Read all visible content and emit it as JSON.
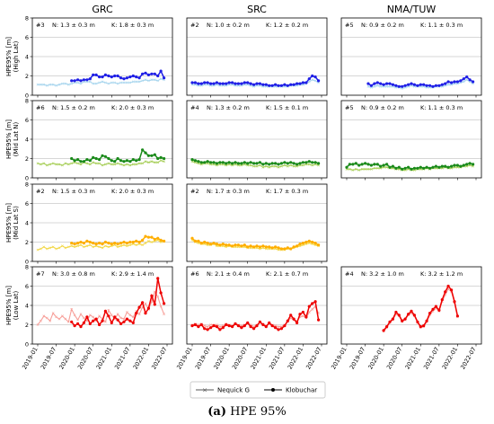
{
  "caption": {
    "label": "(a)",
    "text": "HPE 95%"
  },
  "columns": [
    "GRC",
    "SRC",
    "NMA/TUW"
  ],
  "rows": [
    {
      "ylabel": "HPE95% [m]",
      "group": "(High Lat)",
      "color_k": "#1f1fe6",
      "color_n": "#a9d6ee"
    },
    {
      "ylabel": "HPE95% [m]",
      "group": "(Mid Lat N)",
      "color_k": "#1a8a1a",
      "color_n": "#a8cf5a"
    },
    {
      "ylabel": "HPE95% [m]",
      "group": "(Mid Lat S)",
      "color_k": "#ffae00",
      "color_n": "#f2d84a"
    },
    {
      "ylabel": "HPE95% [m]",
      "group": "(Low Lat)",
      "color_k": "#ee0000",
      "color_n": "#f7a09a"
    }
  ],
  "x_ticks": [
    "2019-01",
    "2019-07",
    "2020-01",
    "2020-07",
    "2021-01",
    "2021-07",
    "2022-01",
    "2022-07"
  ],
  "y_ticks": [
    "0",
    "2",
    "4",
    "6",
    "8"
  ],
  "legend": [
    {
      "label": "Nequick G",
      "color": "#555555",
      "marker": "x"
    },
    {
      "label": "Klobuchar",
      "color": "#000000",
      "marker": "o"
    }
  ],
  "panels": [
    {
      "row": 0,
      "col": 0,
      "id": "#3",
      "n": "N: 1.3 ± 0.3 m",
      "k": "K: 1.8 ± 0.3 m"
    },
    {
      "row": 0,
      "col": 1,
      "id": "#2",
      "n": "N: 1.0 ± 0.2 m",
      "k": "K: 1.2 ± 0.2 m"
    },
    {
      "row": 0,
      "col": 2,
      "id": "#5",
      "n": "N: 0.9 ± 0.2 m",
      "k": "K: 1.1 ± 0.3 m"
    },
    {
      "row": 1,
      "col": 0,
      "id": "#6",
      "n": "N: 1.5 ± 0.2 m",
      "k": "K: 2.0 ± 0.3 m"
    },
    {
      "row": 1,
      "col": 1,
      "id": "#4",
      "n": "N: 1.3 ± 0.2 m",
      "k": "K: 1.5 ± 0.1 m"
    },
    {
      "row": 1,
      "col": 2,
      "id": "#5",
      "n": "N: 0.9 ± 0.2 m",
      "k": "K: 1.1 ± 0.3 m"
    },
    {
      "row": 2,
      "col": 0,
      "id": "#2",
      "n": "N: 1.5 ± 0.3 m",
      "k": "K: 2.0 ± 0.3 m"
    },
    {
      "row": 2,
      "col": 1,
      "id": "#2",
      "n": "N: 1.7 ± 0.3 m",
      "k": "K: 1.7 ± 0.3 m"
    },
    {
      "row": 3,
      "col": 0,
      "id": "#7",
      "n": "N: 3.0 ± 0.8 m",
      "k": "K: 2.9 ± 1.4 m"
    },
    {
      "row": 3,
      "col": 1,
      "id": "#6",
      "n": "N: 2.1 ± 0.4 m",
      "k": "K: 2.1 ± 0.7 m"
    },
    {
      "row": 3,
      "col": 2,
      "id": "#4",
      "n": "N: 3.2 ± 1.0 m",
      "k": "K: 3.2 ± 1.2 m"
    }
  ],
  "chart_data": {
    "type": "line",
    "x_unit": "month",
    "ylim": [
      0,
      8
    ],
    "xlim": [
      "2019-01",
      "2022-07"
    ],
    "grid": true,
    "legend_position": "bottom-center",
    "series": [
      {
        "panel": "GRC / High Lat",
        "name": "Klobuchar",
        "x_start": "2019-12",
        "values": [
          1.5,
          1.5,
          1.6,
          1.5,
          1.6,
          1.6,
          1.7,
          2.1,
          2.1,
          1.9,
          1.9,
          2.1,
          2.0,
          1.9,
          2.0,
          2.0,
          1.8,
          1.7,
          1.8,
          1.9,
          2.0,
          1.9,
          1.8,
          2.2,
          2.3,
          2.1,
          2.2,
          2.2,
          2.0,
          2.5,
          1.8
        ]
      },
      {
        "panel": "GRC / High Lat",
        "name": "Nequick G",
        "x_start": "2019-01",
        "values": [
          1.1,
          1.1,
          1.1,
          1.0,
          1.1,
          1.1,
          1.0,
          1.1,
          1.2,
          1.2,
          1.1,
          1.2,
          1.3,
          1.3,
          1.2,
          1.4,
          1.4,
          1.4,
          1.2,
          1.2,
          1.3,
          1.4,
          1.3,
          1.2,
          1.3,
          1.3,
          1.2,
          1.3,
          1.3,
          1.3,
          1.3,
          1.4,
          1.4,
          1.4,
          1.5,
          1.6,
          1.5,
          1.6,
          1.6,
          1.5,
          1.7,
          1.6
        ]
      },
      {
        "panel": "SRC / High Lat",
        "name": "Klobuchar",
        "x_start": "2019-01",
        "values": [
          1.3,
          1.3,
          1.2,
          1.2,
          1.3,
          1.3,
          1.2,
          1.2,
          1.3,
          1.2,
          1.2,
          1.2,
          1.3,
          1.3,
          1.2,
          1.2,
          1.2,
          1.3,
          1.3,
          1.2,
          1.1,
          1.2,
          1.2,
          1.1,
          1.1,
          1.0,
          1.0,
          1.1,
          1.0,
          1.0,
          1.1,
          1.0,
          1.1,
          1.1,
          1.2,
          1.2,
          1.3,
          1.3,
          1.7,
          2.0,
          1.9,
          1.5
        ]
      },
      {
        "panel": "SRC / High Lat",
        "name": "Nequick G",
        "x_start": "2019-01",
        "values": [
          1.1,
          1.1,
          1.0,
          1.0,
          1.1,
          1.1,
          1.0,
          1.0,
          1.1,
          1.0,
          1.0,
          1.0,
          1.1,
          1.1,
          1.0,
          1.0,
          1.0,
          1.1,
          1.1,
          1.0,
          0.9,
          1.0,
          1.0,
          0.9,
          0.9,
          0.9,
          0.9,
          0.9,
          0.9,
          0.9,
          0.9,
          0.9,
          1.0,
          1.0,
          1.0,
          1.1,
          1.1,
          1.2,
          1.4,
          1.6,
          1.5,
          1.3
        ]
      },
      {
        "panel": "NMA/TUW / High Lat",
        "name": "Klobuchar",
        "x_start": "2019-08",
        "values": [
          1.2,
          1.0,
          1.2,
          1.3,
          1.2,
          1.1,
          1.2,
          1.2,
          1.1,
          1.0,
          0.9,
          0.9,
          1.0,
          1.1,
          1.2,
          1.1,
          1.0,
          1.1,
          1.1,
          1.0,
          1.0,
          0.9,
          1.0,
          1.0,
          1.1,
          1.2,
          1.4,
          1.3,
          1.4,
          1.4,
          1.5,
          1.7,
          1.9,
          1.6,
          1.4
        ]
      },
      {
        "panel": "NMA/TUW / High Lat",
        "name": "Nequick G",
        "x_start": "2019-08",
        "values": [
          0.9,
          0.8,
          0.9,
          1.0,
          0.9,
          0.9,
          0.9,
          0.9,
          0.9,
          0.8,
          0.8,
          0.7,
          0.8,
          0.9,
          1.0,
          0.9,
          0.9,
          0.9,
          0.9,
          0.8,
          0.8,
          0.8,
          0.9,
          0.9,
          0.9,
          1.0,
          1.1,
          1.1,
          1.2,
          1.2,
          1.3,
          1.4,
          1.6,
          1.4,
          1.2
        ]
      },
      {
        "panel": "GRC / Mid Lat N",
        "name": "Klobuchar",
        "x_start": "2019-12",
        "values": [
          2.0,
          1.8,
          1.9,
          1.7,
          1.7,
          1.9,
          1.8,
          2.1,
          2.0,
          1.9,
          2.3,
          2.2,
          2.0,
          1.8,
          1.7,
          2.0,
          1.8,
          1.7,
          1.8,
          1.7,
          1.9,
          1.8,
          1.9,
          2.9,
          2.6,
          2.3,
          2.3,
          2.4,
          2.0,
          2.1,
          2.0
        ]
      },
      {
        "panel": "GRC / Mid Lat N",
        "name": "Nequick G",
        "x_start": "2019-01",
        "values": [
          1.5,
          1.4,
          1.5,
          1.3,
          1.4,
          1.5,
          1.4,
          1.4,
          1.3,
          1.5,
          1.4,
          1.5,
          1.6,
          1.5,
          1.4,
          1.6,
          1.5,
          1.4,
          1.6,
          1.5,
          1.5,
          1.3,
          1.4,
          1.5,
          1.4,
          1.4,
          1.5,
          1.4,
          1.3,
          1.4,
          1.3,
          1.4,
          1.4,
          1.5,
          1.5,
          1.7,
          1.6,
          1.7,
          1.6,
          1.6,
          1.8,
          1.7
        ]
      },
      {
        "panel": "SRC / Mid Lat N",
        "name": "Klobuchar",
        "x_start": "2019-01",
        "values": [
          1.9,
          1.8,
          1.7,
          1.6,
          1.6,
          1.7,
          1.6,
          1.6,
          1.5,
          1.6,
          1.6,
          1.5,
          1.6,
          1.5,
          1.6,
          1.5,
          1.5,
          1.6,
          1.5,
          1.6,
          1.5,
          1.5,
          1.6,
          1.4,
          1.5,
          1.4,
          1.5,
          1.5,
          1.4,
          1.5,
          1.6,
          1.5,
          1.6,
          1.5,
          1.4,
          1.5,
          1.6,
          1.6,
          1.7,
          1.6,
          1.6,
          1.5
        ]
      },
      {
        "panel": "SRC / Mid Lat N",
        "name": "Nequick G",
        "x_start": "2019-01",
        "values": [
          1.7,
          1.6,
          1.5,
          1.4,
          1.5,
          1.5,
          1.4,
          1.4,
          1.3,
          1.4,
          1.4,
          1.3,
          1.4,
          1.3,
          1.4,
          1.3,
          1.3,
          1.4,
          1.3,
          1.3,
          1.2,
          1.2,
          1.3,
          1.1,
          1.2,
          1.1,
          1.2,
          1.2,
          1.1,
          1.2,
          1.3,
          1.2,
          1.3,
          1.2,
          1.2,
          1.3,
          1.3,
          1.4,
          1.4,
          1.3,
          1.4,
          1.3
        ]
      },
      {
        "panel": "NMA/TUW / Mid Lat N",
        "name": "Klobuchar",
        "x_start": "2019-01",
        "values": [
          1.1,
          1.4,
          1.4,
          1.5,
          1.3,
          1.4,
          1.5,
          1.4,
          1.3,
          1.4,
          1.4,
          1.2,
          1.3,
          1.4,
          1.1,
          1.2,
          1.0,
          1.1,
          0.9,
          1.0,
          1.1,
          0.9,
          1.0,
          1.0,
          1.1,
          1.0,
          1.1,
          1.0,
          1.1,
          1.2,
          1.1,
          1.2,
          1.2,
          1.1,
          1.2,
          1.3,
          1.3,
          1.2,
          1.3,
          1.4,
          1.5,
          1.4
        ]
      },
      {
        "panel": "NMA/TUW / Mid Lat N",
        "name": "Nequick G",
        "x_start": "2019-01",
        "values": [
          0.9,
          0.9,
          0.8,
          0.9,
          0.8,
          0.9,
          0.9,
          0.9,
          0.9,
          1.0,
          1.0,
          1.0,
          1.1,
          1.1,
          1.0,
          1.0,
          0.9,
          0.9,
          0.8,
          0.8,
          0.9,
          0.8,
          0.8,
          0.9,
          0.9,
          0.9,
          1.0,
          0.9,
          1.0,
          1.0,
          1.0,
          1.0,
          1.1,
          1.0,
          1.0,
          1.1,
          1.1,
          1.1,
          1.2,
          1.2,
          1.3,
          1.2
        ]
      },
      {
        "panel": "GRC / Mid Lat S",
        "name": "Klobuchar",
        "x_start": "2019-12",
        "values": [
          1.9,
          1.8,
          1.9,
          2.0,
          1.9,
          2.1,
          2.0,
          1.9,
          1.8,
          1.9,
          1.8,
          2.0,
          1.9,
          1.8,
          1.9,
          1.8,
          1.9,
          2.0,
          1.9,
          2.0,
          2.0,
          2.1,
          2.0,
          2.2,
          2.6,
          2.5,
          2.5,
          2.3,
          2.4,
          2.2,
          2.1
        ]
      },
      {
        "panel": "GRC / Mid Lat S",
        "name": "Nequick G",
        "x_start": "2019-01",
        "values": [
          1.2,
          1.3,
          1.5,
          1.3,
          1.4,
          1.5,
          1.3,
          1.4,
          1.6,
          1.4,
          1.5,
          1.6,
          1.5,
          1.6,
          1.7,
          1.5,
          1.6,
          1.7,
          1.5,
          1.6,
          1.5,
          1.4,
          1.6,
          1.5,
          1.6,
          1.7,
          1.5,
          1.6,
          1.7,
          1.6,
          1.7,
          1.8,
          1.7,
          1.8,
          1.7,
          1.9,
          2.1,
          2.0,
          2.1,
          2.2,
          2.0,
          2.1
        ]
      },
      {
        "panel": "SRC / Mid Lat S",
        "name": "Klobuchar",
        "x_start": "2019-01",
        "values": [
          2.4,
          2.1,
          2.1,
          1.9,
          2.0,
          1.9,
          1.8,
          1.9,
          1.8,
          1.7,
          1.8,
          1.7,
          1.7,
          1.6,
          1.7,
          1.7,
          1.6,
          1.7,
          1.5,
          1.6,
          1.5,
          1.6,
          1.5,
          1.6,
          1.5,
          1.5,
          1.4,
          1.5,
          1.4,
          1.3,
          1.3,
          1.4,
          1.3,
          1.5,
          1.6,
          1.8,
          1.9,
          2.0,
          2.1,
          2.0,
          1.9,
          1.7
        ]
      },
      {
        "panel": "SRC / Mid Lat S",
        "name": "Nequick G",
        "x_start": "2019-01",
        "values": [
          2.2,
          2.0,
          1.9,
          1.8,
          1.8,
          1.7,
          1.7,
          1.8,
          1.6,
          1.6,
          1.6,
          1.5,
          1.6,
          1.5,
          1.5,
          1.5,
          1.5,
          1.5,
          1.4,
          1.4,
          1.4,
          1.4,
          1.3,
          1.4,
          1.3,
          1.3,
          1.3,
          1.3,
          1.2,
          1.2,
          1.2,
          1.3,
          1.3,
          1.4,
          1.5,
          1.6,
          1.7,
          1.8,
          1.9,
          1.8,
          1.7,
          1.6
        ]
      },
      {
        "panel": "GRC / Low Lat",
        "name": "Klobuchar",
        "x_start": "2019-12",
        "values": [
          2.3,
          1.9,
          2.1,
          1.8,
          2.2,
          2.8,
          2.1,
          2.4,
          2.6,
          2.0,
          2.4,
          3.4,
          2.9,
          2.2,
          2.8,
          2.5,
          2.1,
          2.3,
          2.6,
          2.4,
          2.2,
          3.2,
          3.8,
          4.3,
          3.2,
          3.7,
          5.0,
          4.1,
          6.8,
          5.3,
          4.2
        ]
      },
      {
        "panel": "GRC / Low Lat",
        "name": "Nequick G",
        "x_start": "2019-01",
        "values": [
          2.0,
          2.4,
          2.9,
          2.7,
          2.4,
          3.2,
          2.8,
          2.6,
          2.9,
          2.6,
          2.3,
          3.6,
          3.0,
          2.5,
          3.1,
          2.7,
          2.4,
          3.0,
          2.8,
          2.4,
          2.9,
          2.6,
          2.3,
          3.5,
          3.0,
          2.6,
          3.1,
          2.7,
          2.6,
          3.3,
          3.0,
          2.8,
          3.4,
          3.1,
          3.8,
          4.2,
          3.6,
          4.4,
          5.4,
          4.9,
          3.9,
          3.1
        ]
      },
      {
        "panel": "SRC / Low Lat",
        "name": "Klobuchar",
        "x_start": "2019-01",
        "values": [
          1.9,
          2.0,
          1.8,
          2.0,
          1.6,
          1.5,
          1.7,
          1.9,
          1.8,
          1.5,
          1.7,
          2.0,
          1.9,
          1.8,
          2.1,
          1.9,
          1.7,
          1.9,
          2.2,
          1.8,
          1.6,
          1.9,
          2.3,
          2.0,
          1.8,
          2.2,
          1.9,
          1.7,
          1.5,
          1.6,
          1.9,
          2.4,
          3.0,
          2.6,
          2.2,
          3.1,
          3.3,
          2.8,
          3.9,
          4.2,
          4.4,
          2.5
        ]
      },
      {
        "panel": "SRC / Low Lat",
        "name": "Nequick G",
        "x_start": "2019-01",
        "values": [
          2.0,
          2.1,
          2.0,
          2.1,
          1.9,
          1.8,
          2.0,
          2.0,
          2.0,
          1.8,
          1.9,
          2.1,
          2.0,
          1.9,
          2.1,
          2.0,
          1.9,
          2.0,
          2.2,
          2.0,
          1.8,
          2.0,
          2.2,
          2.1,
          1.9,
          2.1,
          2.0,
          1.9,
          1.8,
          1.8,
          2.0,
          2.3,
          2.7,
          2.5,
          2.4,
          2.8,
          2.9,
          2.7,
          3.3,
          3.6,
          3.9,
          3.2
        ]
      },
      {
        "panel": "NMA/TUW / Low Lat",
        "name": "Klobuchar",
        "x_start": "2020-01",
        "values": [
          1.4,
          1.8,
          2.3,
          2.6,
          3.3,
          3.0,
          2.4,
          2.6,
          3.1,
          3.4,
          3.0,
          2.3,
          1.8,
          1.9,
          2.4,
          3.2,
          3.6,
          3.9,
          3.5,
          4.6,
          5.4,
          6.0,
          5.6,
          4.4,
          2.9
        ]
      },
      {
        "panel": "NMA/TUW / Low Lat",
        "name": "Nequick G",
        "x_start": "2020-01",
        "values": [
          1.3,
          1.7,
          2.2,
          2.5,
          3.1,
          2.9,
          2.3,
          2.5,
          3.0,
          3.2,
          2.9,
          2.2,
          1.7,
          1.8,
          2.3,
          3.0,
          3.4,
          3.7,
          3.4,
          4.4,
          5.1,
          5.7,
          5.4,
          4.3,
          2.8
        ]
      }
    ]
  }
}
